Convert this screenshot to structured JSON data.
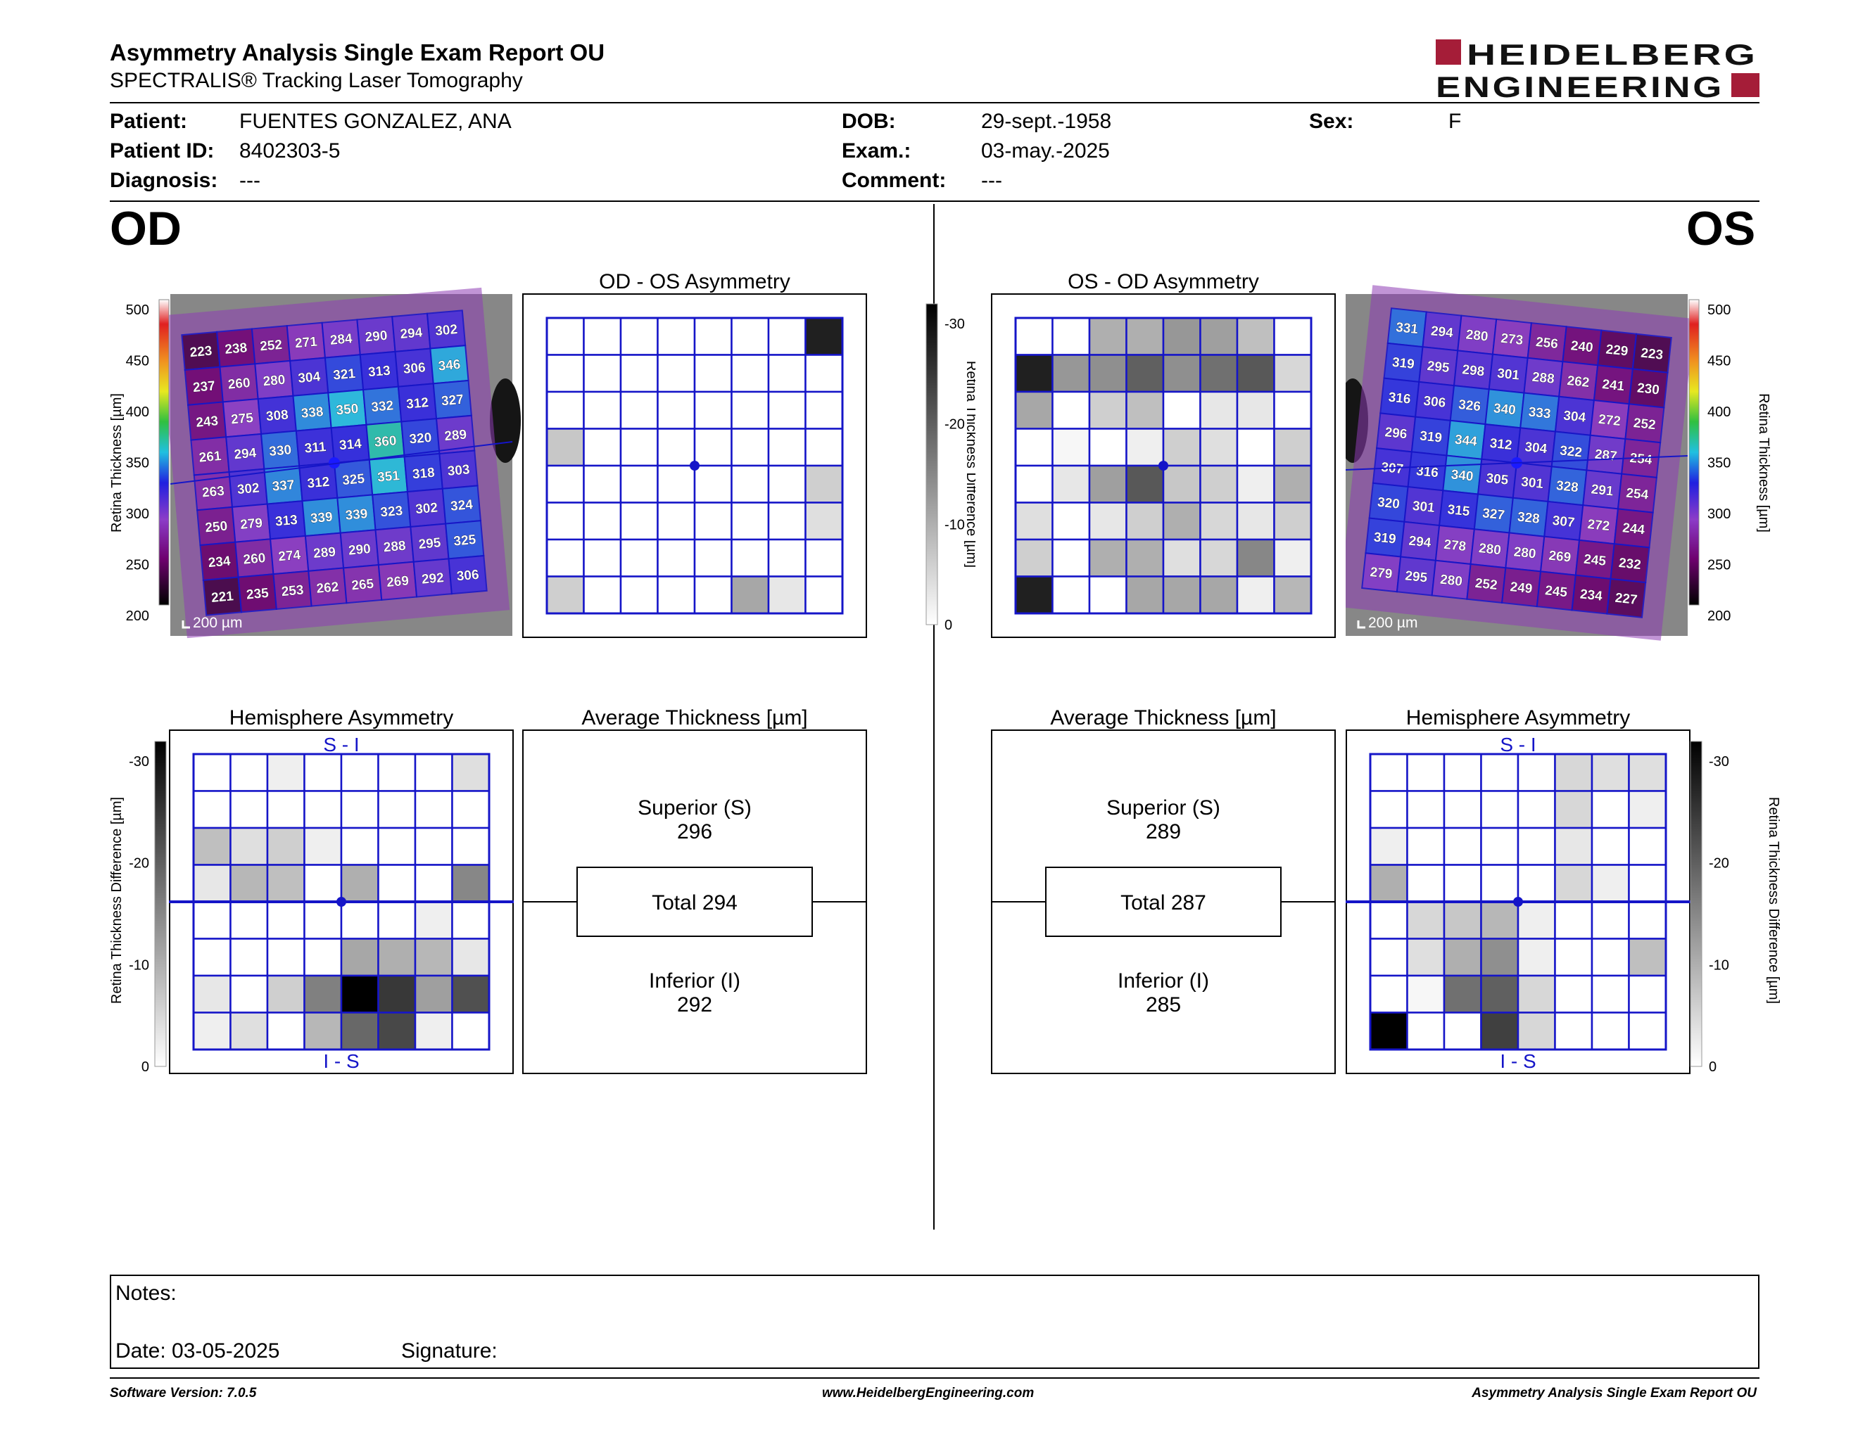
{
  "report": {
    "title": "Asymmetry Analysis Single Exam Report OU",
    "subtitle": "SPECTRALIS® Tracking Laser Tomography",
    "logo_text": "HEIDELBERG ENGINEERING"
  },
  "patient": {
    "patient_label": "Patient:",
    "patient_value": "FUENTES GONZALEZ, ANA",
    "id_label": "Patient ID:",
    "id_value": "8402303-5",
    "diagnosis_label": "Diagnosis:",
    "diagnosis_value": "---",
    "dob_label": "DOB:",
    "dob_value": "29-sept.-1958",
    "exam_label": "Exam.:",
    "exam_value": "03-may.-2025",
    "comment_label": "Comment:",
    "comment_value": "---",
    "sex_label": "Sex:",
    "sex_value": "F"
  },
  "labels": {
    "od": "OD",
    "os": "OS",
    "scale": "200 µm",
    "retina_thickness": "Retina Thickness [µm]",
    "thickness_difference": "Retina Thickness Difference [µm]",
    "thickness_ticks": [
      "500",
      "450",
      "400",
      "350",
      "300",
      "250",
      "200"
    ],
    "difference_ticks": [
      "-30",
      "-20",
      "-10",
      "0"
    ],
    "superior": "Superior (S)",
    "inferior": "Inferior (I)",
    "si": "S - I",
    "is": "I - S"
  },
  "od": {
    "asym_title": "OD - OS Asymmetry",
    "hemi_title": "Hemisphere Asymmetry",
    "avg_title": "Average Thickness [µm]",
    "superior_value": "296",
    "total_text": "Total 294",
    "inferior_value": "292",
    "thickness_grid": [
      [
        "223",
        "238",
        "252",
        "271",
        "284",
        "290",
        "294",
        "302"
      ],
      [
        "237",
        "260",
        "280",
        "304",
        "321",
        "313",
        "306",
        "346"
      ],
      [
        "243",
        "275",
        "308",
        "338",
        "350",
        "332",
        "312",
        "327"
      ],
      [
        "261",
        "294",
        "330",
        "311",
        "314",
        "360",
        "320",
        "289"
      ],
      [
        "263",
        "302",
        "337",
        "312",
        "325",
        "351",
        "318",
        "303"
      ],
      [
        "250",
        "279",
        "313",
        "339",
        "339",
        "323",
        "302",
        "324"
      ],
      [
        "234",
        "260",
        "274",
        "289",
        "290",
        "288",
        "295",
        "325"
      ],
      [
        "221",
        "235",
        "253",
        "262",
        "265",
        "269",
        "292",
        "306"
      ]
    ],
    "asym_grid": [
      [
        0,
        0,
        0,
        0,
        0,
        0,
        0,
        28
      ],
      [
        0,
        0,
        0,
        0,
        0,
        0,
        0,
        0
      ],
      [
        0,
        0,
        0,
        0,
        0,
        0,
        0,
        0
      ],
      [
        7,
        0,
        0,
        0,
        0,
        0,
        0,
        0
      ],
      [
        0,
        0,
        0,
        0,
        0,
        0,
        0,
        6
      ],
      [
        0,
        0,
        0,
        0,
        0,
        0,
        0,
        4
      ],
      [
        0,
        0,
        0,
        0,
        0,
        0,
        0,
        0
      ],
      [
        6,
        0,
        0,
        0,
        0,
        11,
        3,
        0
      ]
    ],
    "hemi_grid": [
      [
        0,
        0,
        2,
        0,
        0,
        0,
        0,
        4
      ],
      [
        0,
        0,
        0,
        0,
        0,
        0,
        0,
        0
      ],
      [
        8,
        4,
        6,
        2,
        0,
        0,
        0,
        0
      ],
      [
        3,
        9,
        8,
        0,
        10,
        0,
        0,
        15
      ],
      [
        0,
        0,
        0,
        0,
        0,
        0,
        2,
        0
      ],
      [
        0,
        0,
        0,
        0,
        11,
        10,
        9,
        3
      ],
      [
        3,
        0,
        6,
        16,
        32,
        25,
        12,
        22
      ],
      [
        2,
        4,
        0,
        9,
        19,
        23,
        2,
        0
      ]
    ]
  },
  "os": {
    "asym_title": "OS - OD Asymmetry",
    "hemi_title": "Hemisphere Asymmetry",
    "avg_title": "Average Thickness [µm]",
    "superior_value": "289",
    "total_text": "Total 287",
    "inferior_value": "285",
    "thickness_grid": [
      [
        "331",
        "294",
        "280",
        "273",
        "256",
        "240",
        "229",
        "223"
      ],
      [
        "319",
        "295",
        "298",
        "301",
        "288",
        "262",
        "241",
        "230"
      ],
      [
        "316",
        "306",
        "326",
        "340",
        "333",
        "304",
        "272",
        "252"
      ],
      [
        "296",
        "319",
        "344",
        "312",
        "304",
        "322",
        "287",
        "254"
      ],
      [
        "307",
        "316",
        "340",
        "305",
        "301",
        "328",
        "291",
        "254"
      ],
      [
        "320",
        "301",
        "315",
        "327",
        "328",
        "307",
        "272",
        "244"
      ],
      [
        "319",
        "294",
        "278",
        "280",
        "280",
        "269",
        "245",
        "232"
      ],
      [
        "279",
        "295",
        "280",
        "252",
        "249",
        "245",
        "234",
        "227"
      ]
    ],
    "asym_grid": [
      [
        0,
        0,
        10,
        10,
        13,
        12,
        8,
        0
      ],
      [
        28,
        13,
        14,
        20,
        14,
        18,
        21,
        5
      ],
      [
        11,
        0,
        6,
        8,
        0,
        3,
        3,
        0
      ],
      [
        0,
        1,
        0,
        2,
        6,
        4,
        0,
        6
      ],
      [
        0,
        3,
        12,
        21,
        7,
        6,
        2,
        10
      ],
      [
        4,
        0,
        3,
        6,
        10,
        5,
        3,
        6
      ],
      [
        6,
        0,
        10,
        10,
        4,
        5,
        15,
        2
      ],
      [
        28,
        0,
        0,
        11,
        11,
        11,
        2,
        9
      ]
    ],
    "hemi_grid": [
      [
        0,
        0,
        0,
        0,
        0,
        5,
        4,
        4
      ],
      [
        0,
        0,
        0,
        0,
        0,
        5,
        0,
        2
      ],
      [
        2,
        0,
        0,
        0,
        0,
        3,
        0,
        0
      ],
      [
        10,
        0,
        0,
        0,
        0,
        5,
        2,
        0
      ],
      [
        0,
        5,
        7,
        9,
        2,
        0,
        0,
        0
      ],
      [
        0,
        4,
        10,
        14,
        2,
        0,
        0,
        8
      ],
      [
        0,
        1,
        18,
        20,
        5,
        0,
        0,
        0
      ],
      [
        32,
        0,
        0,
        24,
        5,
        0,
        0,
        0
      ]
    ]
  },
  "notes": {
    "notes_label": "Notes:",
    "date_label": "Date: 03-05-2025",
    "signature_label": "Signature:"
  },
  "footer": {
    "left": "Software Version: 7.0.5",
    "center": "www.HeidelbergEngineering.com",
    "right": "Asymmetry Analysis Single Exam Report OU"
  },
  "colors": {
    "grid_blue": "#1515c8",
    "brand_red": "#a51d38"
  }
}
